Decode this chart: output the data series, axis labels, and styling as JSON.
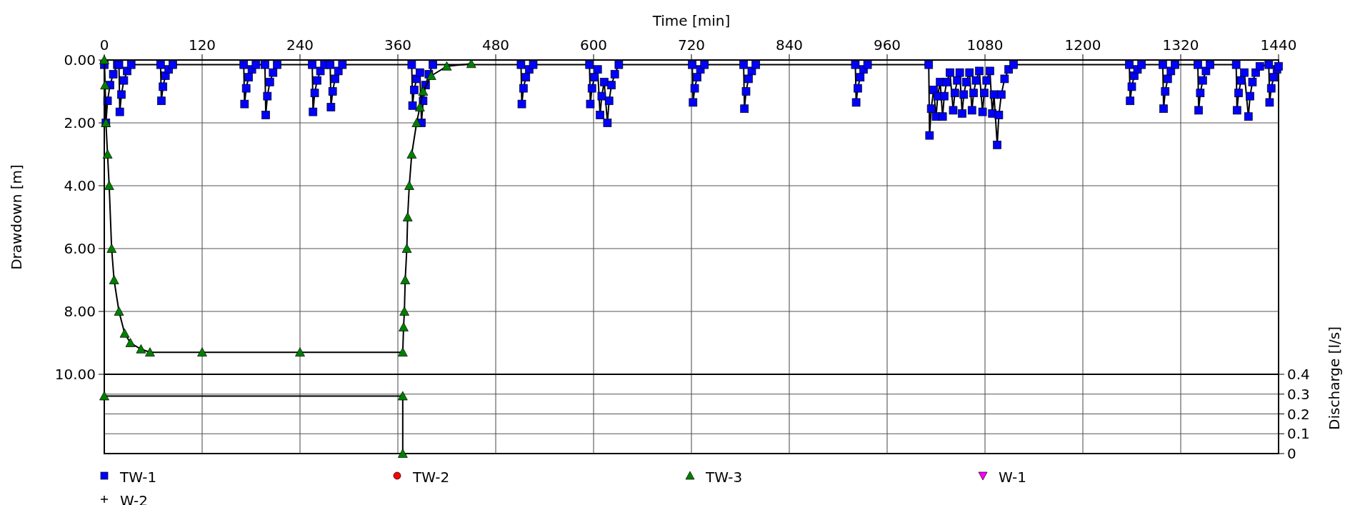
{
  "chart_data": [
    {
      "type": "line",
      "xlabel": "Time [min]",
      "ylabel": "Drawdown [m]",
      "xlim": [
        0,
        1440
      ],
      "xticks": [
        0,
        120,
        240,
        360,
        480,
        600,
        720,
        840,
        960,
        1080,
        1200,
        1320,
        1440
      ],
      "ylim": [
        10,
        0
      ],
      "yticks": [
        {
          "value": 0,
          "label": "0.00"
        },
        {
          "value": 2,
          "label": "2.00"
        },
        {
          "value": 4,
          "label": "4.00"
        },
        {
          "value": 6,
          "label": "6.00"
        },
        {
          "value": 8,
          "label": "8.00"
        },
        {
          "value": 10,
          "label": "10.00"
        }
      ],
      "grid": true,
      "legend": "bottom",
      "series": [
        {
          "name": "TW-1",
          "color": "#0000ff",
          "marker": "square",
          "x": [
            0,
            2,
            4,
            7,
            11,
            16,
            18,
            19,
            21,
            24,
            28,
            33,
            69,
            70,
            72,
            75,
            79,
            84,
            171,
            172,
            174,
            177,
            181,
            186,
            197,
            198,
            200,
            203,
            207,
            212,
            255,
            256,
            258,
            261,
            265,
            270,
            277,
            278,
            280,
            283,
            287,
            292,
            377,
            378,
            380,
            383,
            387,
            389,
            391,
            394,
            398,
            403,
            511,
            512,
            514,
            517,
            521,
            526,
            595,
            596,
            598,
            601,
            605,
            608,
            610,
            613,
            617,
            619,
            622,
            626,
            631,
            721,
            722,
            724,
            727,
            731,
            736,
            784,
            785,
            787,
            790,
            794,
            799,
            921,
            922,
            924,
            927,
            931,
            936,
            1011,
            1012,
            1014,
            1017,
            1020,
            1022,
            1025,
            1028,
            1030,
            1033,
            1037,
            1041,
            1043,
            1046,
            1049,
            1052,
            1054,
            1057,
            1061,
            1064,
            1066,
            1069,
            1073,
            1077,
            1079,
            1082,
            1086,
            1089,
            1091,
            1095,
            1097,
            1100,
            1104,
            1109,
            1115,
            1257,
            1258,
            1260,
            1263,
            1267,
            1272,
            1298,
            1299,
            1301,
            1304,
            1308,
            1313,
            1341,
            1342,
            1344,
            1347,
            1351,
            1356,
            1388,
            1389,
            1391,
            1394,
            1398,
            1403,
            1405,
            1408,
            1412,
            1417,
            1428,
            1429,
            1431,
            1434,
            1438,
            1440
          ],
          "values": [
            0.15,
            2.0,
            1.3,
            0.8,
            0.45,
            0.15,
            0.15,
            1.65,
            1.1,
            0.65,
            0.35,
            0.15,
            0.15,
            1.3,
            0.85,
            0.5,
            0.3,
            0.15,
            0.15,
            1.4,
            0.9,
            0.55,
            0.3,
            0.15,
            0.15,
            1.75,
            1.15,
            0.7,
            0.4,
            0.15,
            0.15,
            1.65,
            1.05,
            0.65,
            0.35,
            0.15,
            0.15,
            1.5,
            1.0,
            0.6,
            0.35,
            0.15,
            0.15,
            1.45,
            0.95,
            0.6,
            0.4,
            2.0,
            1.3,
            0.8,
            0.45,
            0.15,
            0.15,
            1.4,
            0.9,
            0.55,
            0.3,
            0.15,
            0.15,
            1.4,
            0.9,
            0.55,
            0.3,
            1.75,
            1.15,
            0.7,
            2.0,
            1.3,
            0.8,
            0.45,
            0.15,
            0.15,
            1.35,
            0.9,
            0.55,
            0.3,
            0.15,
            0.15,
            1.55,
            1.0,
            0.6,
            0.35,
            0.15,
            0.15,
            1.35,
            0.9,
            0.55,
            0.3,
            0.15,
            0.15,
            2.4,
            1.55,
            0.95,
            1.8,
            1.15,
            0.7,
            1.8,
            1.15,
            0.7,
            0.4,
            1.6,
            1.05,
            0.65,
            0.4,
            1.7,
            1.1,
            0.7,
            0.4,
            1.6,
            1.05,
            0.65,
            0.35,
            1.65,
            1.05,
            0.65,
            0.35,
            1.7,
            1.1,
            2.7,
            1.75,
            1.1,
            0.6,
            0.3,
            0.15,
            0.15,
            1.3,
            0.85,
            0.5,
            0.3,
            0.15,
            0.15,
            1.55,
            1.0,
            0.6,
            0.35,
            0.15,
            0.15,
            1.6,
            1.05,
            0.65,
            0.35,
            0.15,
            0.15,
            1.6,
            1.05,
            0.65,
            0.4,
            1.8,
            1.15,
            0.7,
            0.4,
            0.2,
            0.15,
            1.35,
            0.9,
            0.55,
            0.3,
            0.2
          ]
        },
        {
          "name": "TW-2",
          "color": "#ff0000",
          "marker": "circle"
        },
        {
          "name": "TW-3",
          "color": "#008000",
          "marker": "triangle",
          "x": [
            0,
            1,
            2,
            4,
            6,
            9,
            12,
            18,
            25,
            32,
            45,
            56,
            120,
            240,
            366,
            367,
            368,
            369,
            371,
            372,
            374,
            377,
            383,
            387,
            391,
            401,
            420,
            450
          ],
          "values": [
            0,
            0.8,
            2.0,
            3.0,
            4.0,
            6.0,
            7.0,
            8.0,
            8.7,
            9.0,
            9.2,
            9.3,
            9.3,
            9.3,
            9.3,
            8.5,
            8.0,
            7.0,
            6.0,
            5.0,
            4.0,
            3.0,
            2.0,
            1.5,
            1.0,
            0.5,
            0.2,
            0.12
          ]
        },
        {
          "name": "W-1",
          "color": "#ff00ff",
          "marker": "triangle-down"
        },
        {
          "name": "W-2",
          "color": "#000000",
          "marker": "cross"
        }
      ]
    },
    {
      "type": "line",
      "ylabel": "Discharge [l/s]",
      "xlim": [
        0,
        1440
      ],
      "xticks": [
        0,
        120,
        240,
        360,
        480,
        600,
        720,
        840,
        960,
        1080,
        1200,
        1320,
        1440
      ],
      "ylim": [
        0,
        0.4
      ],
      "yticks": [
        0,
        0.1,
        0.2,
        0.3,
        0.4
      ],
      "grid": true,
      "tick_labels": "y",
      "series": [
        {
          "color": "#008000",
          "marker": "triangle",
          "x": [
            0,
            366,
            366
          ],
          "values": [
            0.29,
            0.29,
            0
          ]
        }
      ]
    }
  ]
}
